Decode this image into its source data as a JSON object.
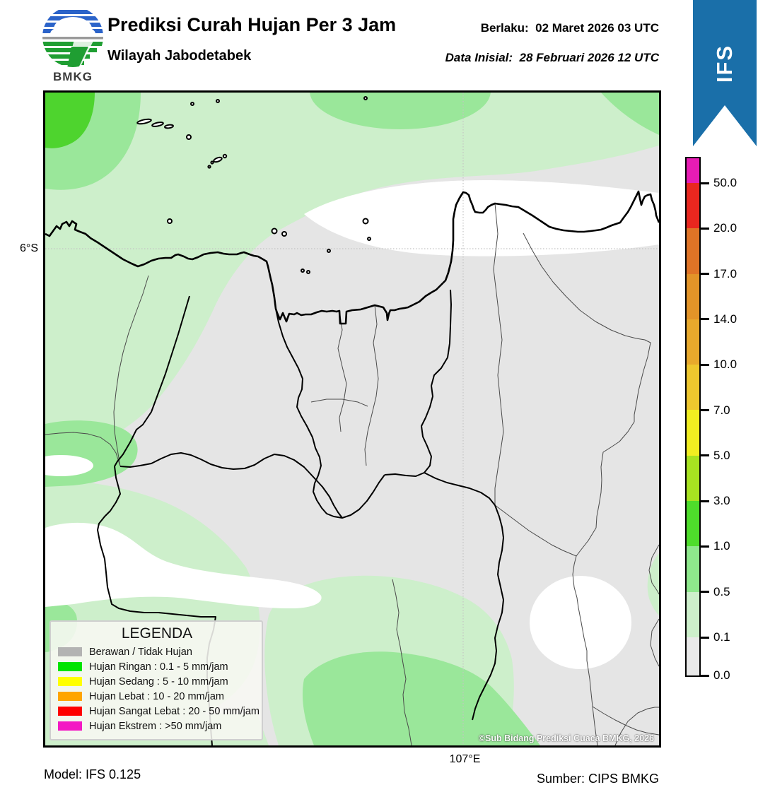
{
  "header": {
    "logo_text": "BMKG",
    "title": "Prediksi Curah Hujan Per 3 Jam",
    "subtitle": "Wilayah Jabodetabek",
    "valid_label": "Berlaku:",
    "valid_value": "02 Maret 2026 03 UTC",
    "initial_label": "Data Inisial:",
    "initial_value": "28 Februari 2026 12 UTC"
  },
  "ribbon": {
    "label": "IFS",
    "color": "#1a6fa9"
  },
  "map": {
    "lat_tick": "6°S",
    "lon_tick": "107°E",
    "copyright": "©Sub Bidang Prediksi Cuaca BMKG, 2026"
  },
  "palette": {
    "ribbonBlue": "#1a6fa9",
    "grayBase": "#e5e5e5",
    "paleGreen": "#cdefcb",
    "medGreen": "#9ae79a",
    "brightGreen": "#4ed42e",
    "whiteZone": "#ffffff",
    "coast": "#000000",
    "thinLine": "#4a4a4a",
    "grid": "#c4c4c4"
  },
  "colorbar": {
    "unit": "mm/jam",
    "tick_labels": [
      "50.0",
      "20.0",
      "17.0",
      "14.0",
      "10.0",
      "7.0",
      "5.0",
      "3.0",
      "1.0",
      "0.5",
      "0.1",
      "0.0"
    ],
    "segments": [
      {
        "range": ">50.0",
        "color": "#e71cb4"
      },
      {
        "range": "20.0-50.0",
        "color": "#e9271f"
      },
      {
        "range": "17.0-20.0",
        "color": "#e07426"
      },
      {
        "range": "14.0-17.0",
        "color": "#e39428"
      },
      {
        "range": "10.0-14.0",
        "color": "#e8a92c"
      },
      {
        "range": "7.0-10.0",
        "color": "#eec72e"
      },
      {
        "range": "5.0-7.0",
        "color": "#f1ee21"
      },
      {
        "range": "3.0-5.0",
        "color": "#a8e321"
      },
      {
        "range": "1.0-3.0",
        "color": "#4edd2b"
      },
      {
        "range": "0.5-1.0",
        "color": "#8ee88c"
      },
      {
        "range": "0.1-0.5",
        "color": "#cdefcb"
      },
      {
        "range": "0.0-0.1",
        "color": "#e9e9e9"
      }
    ]
  },
  "legend": {
    "title": "LEGENDA",
    "items": [
      {
        "label": "Berawan / Tidak Hujan",
        "color": "#b3b3b3"
      },
      {
        "label": "Hujan Ringan : 0.1 - 5 mm/jam",
        "color": "#00e400"
      },
      {
        "label": "Hujan Sedang : 5 - 10 mm/jam",
        "color": "#ffff00"
      },
      {
        "label": "Hujan Lebat : 10 - 20 mm/jam",
        "color": "#ffa500"
      },
      {
        "label": "Hujan Sangat Lebat : 20 - 50 mm/jam",
        "color": "#fe0000"
      },
      {
        "label": "Hujan Ekstrem : >50 mm/jam",
        "color": "#f319c4"
      }
    ]
  },
  "footer": {
    "model": "Model: IFS 0.125",
    "source": "Sumber: CIPS BMKG"
  }
}
